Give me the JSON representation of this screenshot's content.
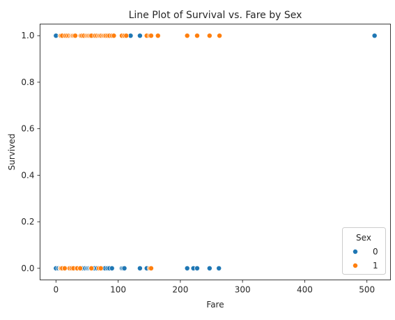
{
  "chart_data": {
    "type": "scatter",
    "title": "Line Plot of Survival vs. Fare by Sex",
    "xlabel": "Fare",
    "ylabel": "Survived",
    "xlim": [
      -25.6,
      537.9
    ],
    "ylim": [
      -0.05,
      1.05
    ],
    "xticks": [
      "0",
      "100",
      "200",
      "300",
      "400",
      "500"
    ],
    "yticks": [
      "0.0",
      "0.2",
      "0.4",
      "0.6",
      "0.8",
      "1.0"
    ],
    "grid": false,
    "legend": {
      "title": "Sex",
      "placement": "lower-right"
    },
    "series": [
      {
        "name": "0",
        "color": "#1f77b4",
        "points": [
          [
            0,
            1
          ],
          [
            7.5,
            1
          ],
          [
            9,
            1
          ],
          [
            12,
            1
          ],
          [
            14,
            1
          ],
          [
            26,
            1
          ],
          [
            30,
            1
          ],
          [
            52,
            1
          ],
          [
            56,
            1
          ],
          [
            57,
            1
          ],
          [
            60,
            1
          ],
          [
            77,
            1
          ],
          [
            90,
            1
          ],
          [
            108,
            1
          ],
          [
            110,
            1
          ],
          [
            120,
            1
          ],
          [
            135,
            1
          ],
          [
            152,
            1
          ],
          [
            512.33,
            1
          ],
          [
            0,
            0
          ],
          [
            4,
            0
          ],
          [
            7,
            0
          ],
          [
            7.75,
            0
          ],
          [
            8.05,
            0
          ],
          [
            9.5,
            0
          ],
          [
            11,
            0
          ],
          [
            13,
            0
          ],
          [
            15,
            0
          ],
          [
            21,
            0
          ],
          [
            26,
            0
          ],
          [
            27,
            0
          ],
          [
            30,
            0
          ],
          [
            35,
            0
          ],
          [
            40,
            0
          ],
          [
            42,
            0
          ],
          [
            47,
            0
          ],
          [
            50,
            0
          ],
          [
            52,
            0
          ],
          [
            54,
            0
          ],
          [
            56,
            0
          ],
          [
            60,
            0
          ],
          [
            62,
            0
          ],
          [
            66,
            0
          ],
          [
            71,
            0
          ],
          [
            77,
            0
          ],
          [
            79,
            0
          ],
          [
            83,
            0
          ],
          [
            86,
            0
          ],
          [
            90,
            0
          ],
          [
            106,
            0
          ],
          [
            108,
            0
          ],
          [
            110,
            0
          ],
          [
            135,
            0
          ],
          [
            146,
            0
          ],
          [
            151,
            0
          ],
          [
            211,
            0
          ],
          [
            221,
            0
          ],
          [
            227,
            0
          ],
          [
            247,
            0
          ],
          [
            262,
            0
          ]
        ]
      },
      {
        "name": "1",
        "color": "#ff7f0e",
        "points": [
          [
            7,
            1
          ],
          [
            8,
            1
          ],
          [
            10,
            1
          ],
          [
            15,
            1
          ],
          [
            18,
            1
          ],
          [
            21,
            1
          ],
          [
            24,
            1
          ],
          [
            26,
            1
          ],
          [
            27,
            1
          ],
          [
            29,
            1
          ],
          [
            31,
            1
          ],
          [
            40,
            1
          ],
          [
            42,
            1
          ],
          [
            45,
            1
          ],
          [
            49,
            1
          ],
          [
            51,
            1
          ],
          [
            53,
            1
          ],
          [
            55,
            1
          ],
          [
            57,
            1
          ],
          [
            63,
            1
          ],
          [
            66,
            1
          ],
          [
            69,
            1
          ],
          [
            71,
            1
          ],
          [
            73,
            1
          ],
          [
            76,
            1
          ],
          [
            78,
            1
          ],
          [
            80,
            1
          ],
          [
            83,
            1
          ],
          [
            86,
            1
          ],
          [
            90,
            1
          ],
          [
            93,
            1
          ],
          [
            106,
            1
          ],
          [
            110,
            1
          ],
          [
            113,
            1
          ],
          [
            146,
            1
          ],
          [
            151,
            1
          ],
          [
            153,
            1
          ],
          [
            164,
            1
          ],
          [
            211,
            1
          ],
          [
            227,
            1
          ],
          [
            247,
            1
          ],
          [
            263,
            1
          ],
          [
            7.25,
            0
          ],
          [
            8,
            0
          ],
          [
            10,
            0
          ],
          [
            14,
            0
          ],
          [
            22,
            0
          ],
          [
            25,
            0
          ],
          [
            28,
            0
          ],
          [
            34,
            0
          ],
          [
            39,
            0
          ],
          [
            57,
            0
          ],
          [
            69,
            0
          ],
          [
            72,
            0
          ],
          [
            151,
            0
          ],
          [
            153,
            0
          ]
        ]
      }
    ]
  }
}
